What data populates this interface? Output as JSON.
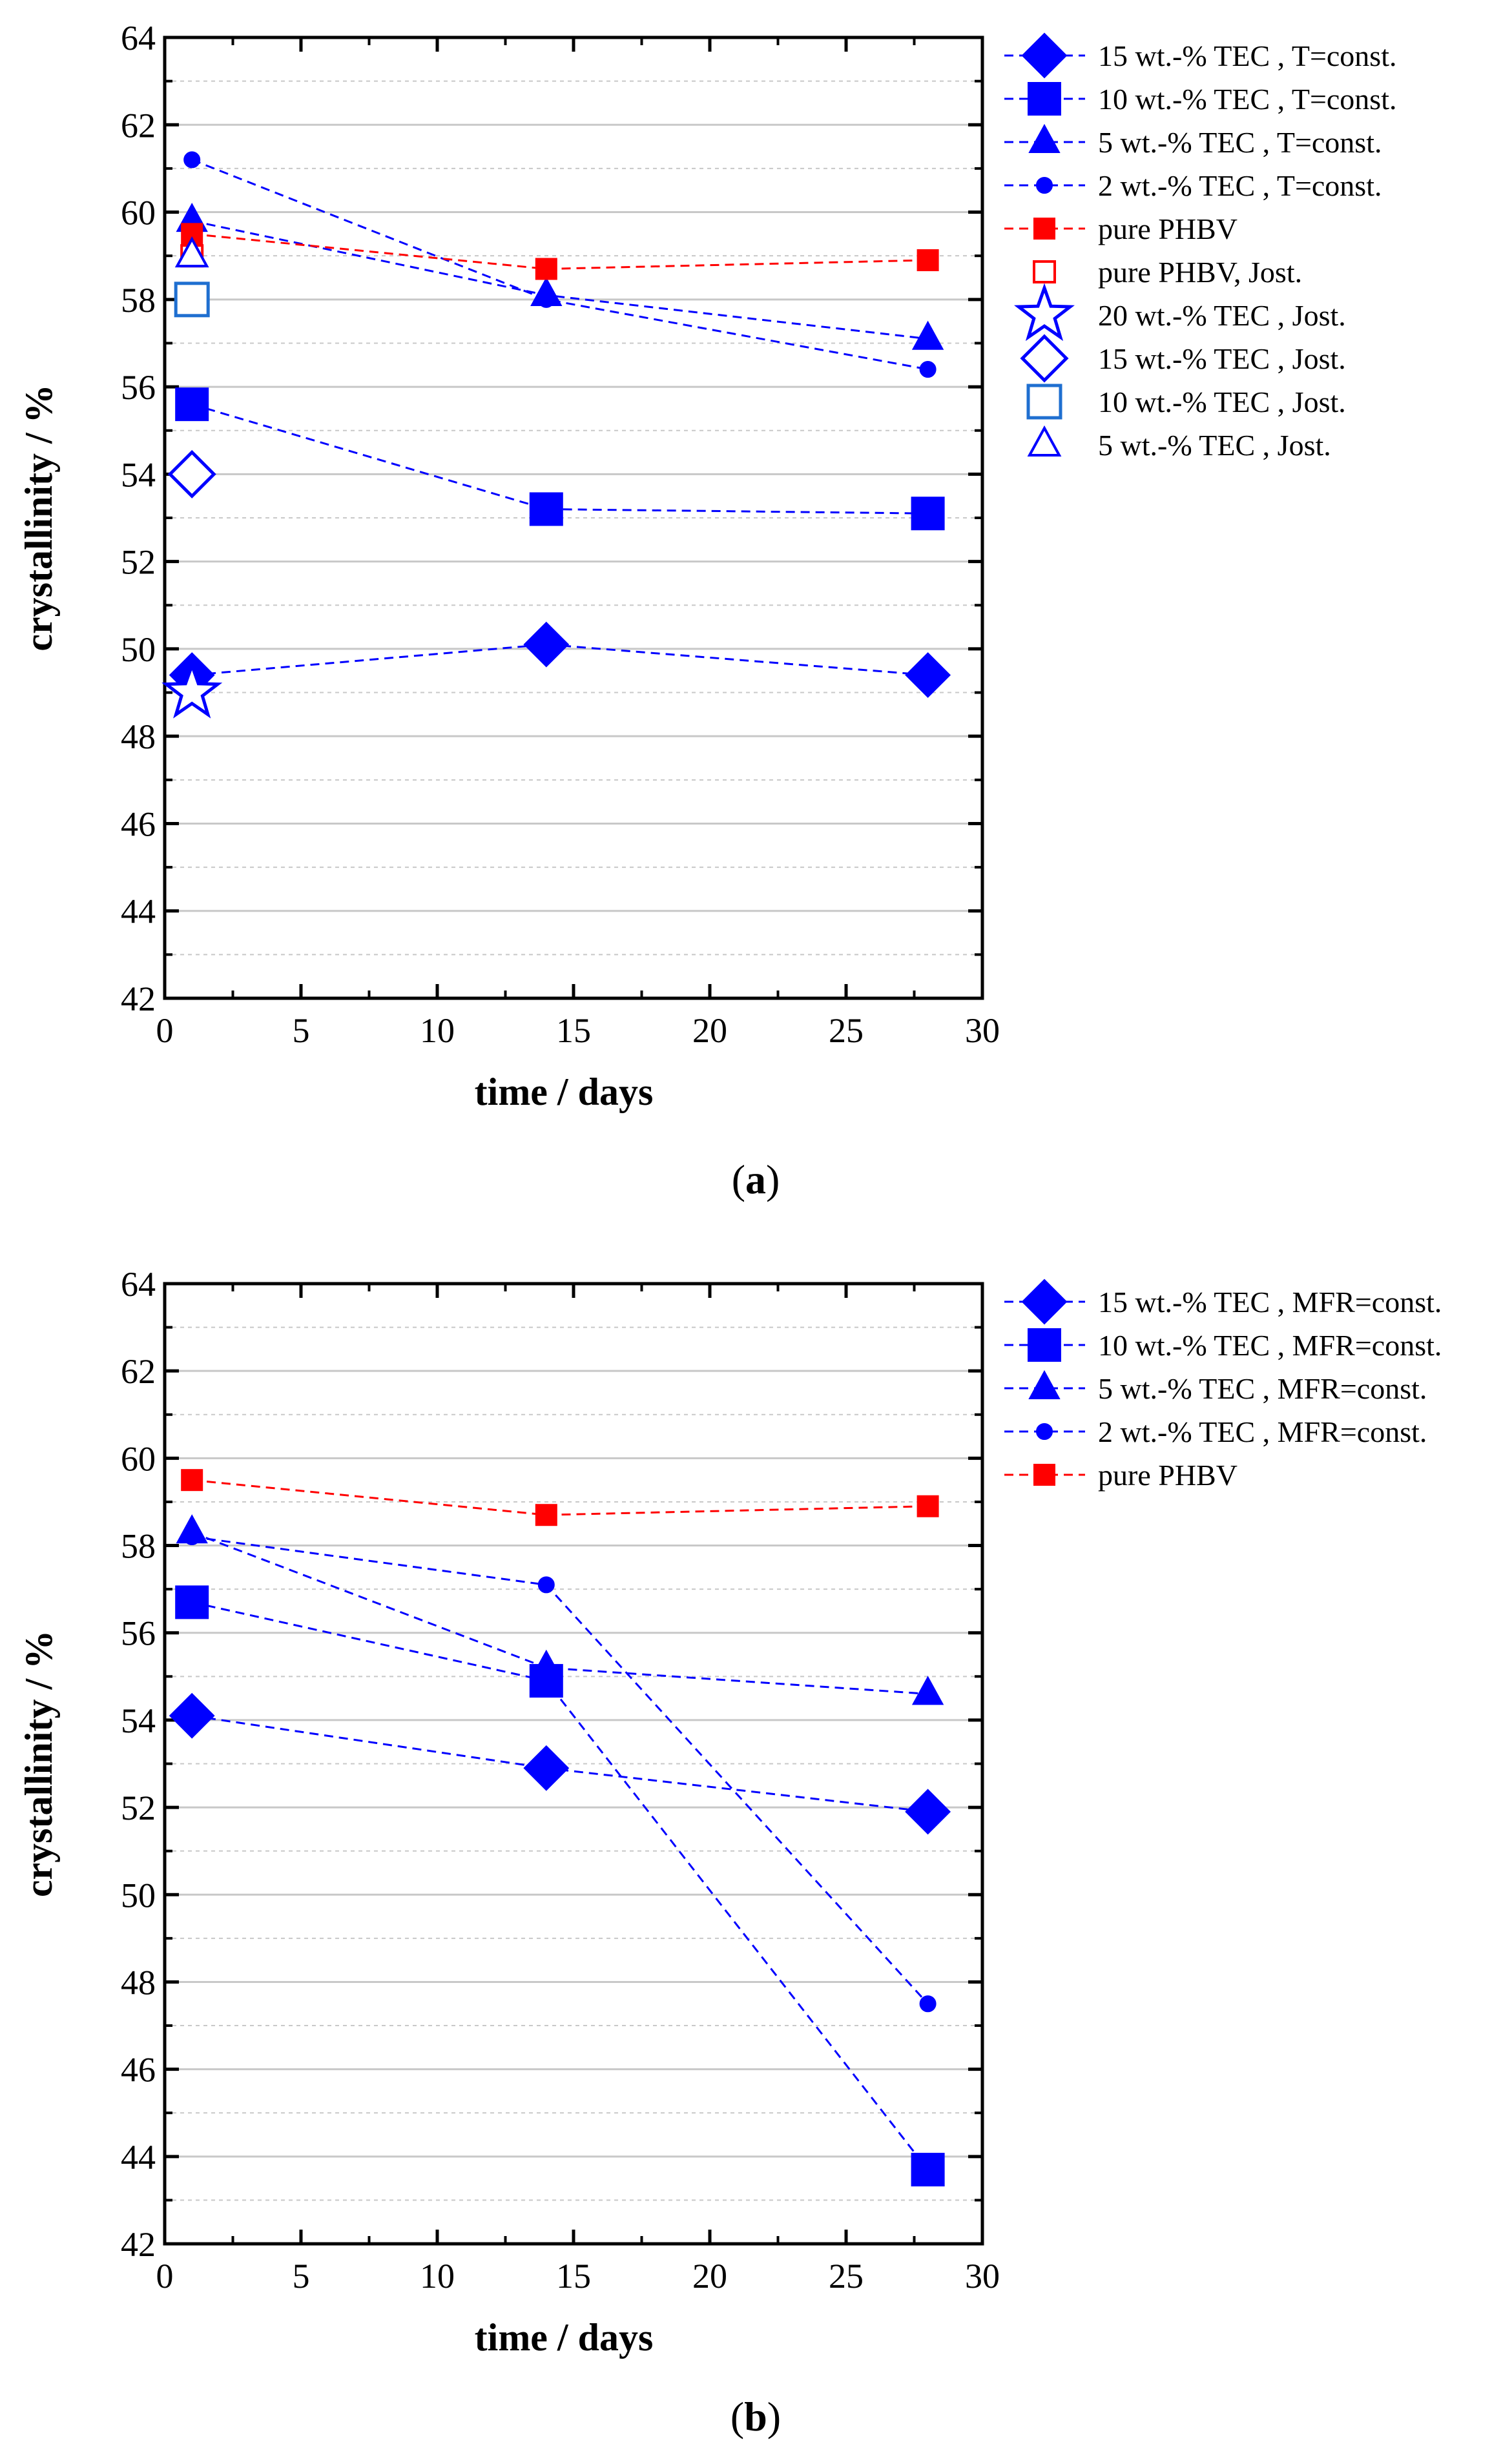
{
  "figure": {
    "captions": {
      "a": {
        "open": "(",
        "letter": "a",
        "close": ")"
      },
      "b": {
        "open": "(",
        "letter": "b",
        "close": ")"
      }
    }
  },
  "colors": {
    "blue": "#0000ff",
    "red": "#ff0000",
    "light_blue": "#1f6fd0",
    "grid": "#c8c8c8"
  },
  "chart_data": [
    {
      "type": "line",
      "panel": "a",
      "xlabel": "time / days",
      "ylabel": "crystallinity / %",
      "xlim": [
        0,
        30
      ],
      "ylim": [
        42,
        64
      ],
      "xticks": [
        0,
        5,
        10,
        15,
        20,
        25,
        30
      ],
      "yticks": [
        42,
        44,
        46,
        48,
        50,
        52,
        54,
        56,
        58,
        60,
        62,
        64
      ],
      "grid": true,
      "legend_position": "outside-right",
      "series": [
        {
          "name": "15 wt.-% TEC , T=const.",
          "marker": "diamond",
          "filled": true,
          "color": "#0000ff",
          "line": true,
          "x": [
            1,
            14,
            28
          ],
          "y": [
            49.4,
            50.1,
            49.4
          ]
        },
        {
          "name": "10 wt.-% TEC , T=const.",
          "marker": "square",
          "filled": true,
          "color": "#0000ff",
          "line": true,
          "x": [
            1,
            14,
            28
          ],
          "y": [
            55.6,
            53.2,
            53.1
          ]
        },
        {
          "name": "5 wt.-% TEC , T=const.",
          "marker": "triangle",
          "filled": true,
          "color": "#0000ff",
          "line": true,
          "x": [
            1,
            14,
            28
          ],
          "y": [
            59.8,
            58.1,
            57.1
          ]
        },
        {
          "name": "2 wt.-% TEC , T=const.",
          "marker": "circle",
          "filled": true,
          "color": "#0000ff",
          "line": true,
          "x": [
            1,
            14,
            28
          ],
          "y": [
            61.2,
            58.0,
            56.4
          ]
        },
        {
          "name": "pure PHBV",
          "marker": "square-small",
          "filled": true,
          "color": "#ff0000",
          "line": true,
          "x": [
            1,
            14,
            28
          ],
          "y": [
            59.5,
            58.7,
            58.9
          ]
        },
        {
          "name": "pure PHBV, Jost.",
          "marker": "square-small",
          "filled": false,
          "color": "#ff0000",
          "line": false,
          "x": [
            1
          ],
          "y": [
            59.0
          ]
        },
        {
          "name": "20 wt.-% TEC , Jost.",
          "marker": "star",
          "filled": false,
          "color": "#0000ff",
          "line": false,
          "x": [
            1
          ],
          "y": [
            49.0
          ]
        },
        {
          "name": "15 wt.-% TEC , Jost.",
          "marker": "diamond",
          "filled": false,
          "color": "#0000ff",
          "line": false,
          "x": [
            1
          ],
          "y": [
            54.0
          ]
        },
        {
          "name": "10 wt.-% TEC , Jost.",
          "marker": "square",
          "filled": false,
          "color": "#1f6fd0",
          "line": false,
          "x": [
            1
          ],
          "y": [
            58.0
          ]
        },
        {
          "name": "5 wt.-% TEC , Jost.",
          "marker": "triangle",
          "filled": false,
          "color": "#0000ff",
          "line": false,
          "x": [
            1
          ],
          "y": [
            59.0
          ]
        }
      ]
    },
    {
      "type": "line",
      "panel": "b",
      "xlabel": "time / days",
      "ylabel": "crystallinity / %",
      "xlim": [
        0,
        30
      ],
      "ylim": [
        42,
        64
      ],
      "xticks": [
        0,
        5,
        10,
        15,
        20,
        25,
        30
      ],
      "yticks": [
        42,
        44,
        46,
        48,
        50,
        52,
        54,
        56,
        58,
        60,
        62,
        64
      ],
      "grid": true,
      "legend_position": "outside-right",
      "series": [
        {
          "name": "15 wt.-% TEC , MFR=const.",
          "marker": "diamond",
          "filled": true,
          "color": "#0000ff",
          "line": true,
          "x": [
            1,
            14,
            28
          ],
          "y": [
            54.1,
            52.9,
            51.9
          ]
        },
        {
          "name": "10 wt.-% TEC , MFR=const.",
          "marker": "square",
          "filled": true,
          "color": "#0000ff",
          "line": true,
          "x": [
            1,
            14,
            28
          ],
          "y": [
            56.7,
            54.9,
            43.7
          ]
        },
        {
          "name": "5 wt.-% TEC , MFR=const.",
          "marker": "triangle",
          "filled": true,
          "color": "#0000ff",
          "line": true,
          "x": [
            1,
            14,
            28
          ],
          "y": [
            58.3,
            55.2,
            54.6
          ]
        },
        {
          "name": "2 wt.-% TEC , MFR=const.",
          "marker": "circle",
          "filled": true,
          "color": "#0000ff",
          "line": true,
          "x": [
            1,
            14,
            28
          ],
          "y": [
            58.2,
            57.1,
            47.5
          ]
        },
        {
          "name": "pure PHBV",
          "marker": "square-small",
          "filled": true,
          "color": "#ff0000",
          "line": true,
          "x": [
            1,
            14,
            28
          ],
          "y": [
            59.5,
            58.7,
            58.9
          ]
        }
      ]
    }
  ]
}
